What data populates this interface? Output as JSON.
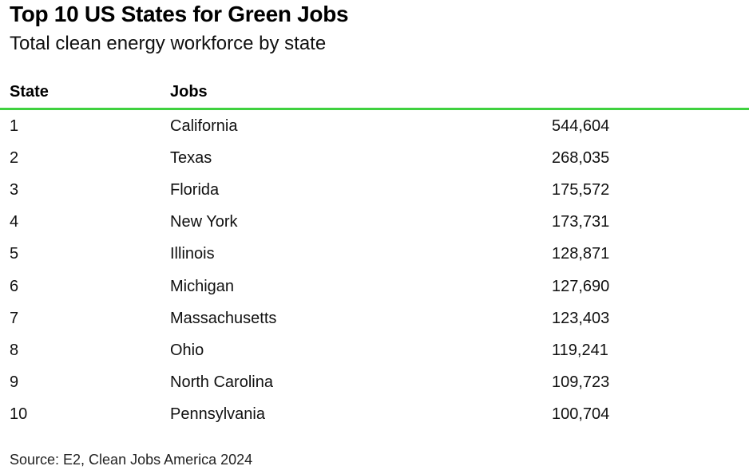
{
  "header": {
    "title": "Top 10 US States for Green Jobs",
    "subtitle": "Total clean energy workforce by state"
  },
  "table": {
    "columns": [
      "State",
      "Jobs"
    ],
    "rows": [
      [
        "1",
        "California",
        "544,604"
      ],
      [
        "2",
        "Texas",
        "268,035"
      ],
      [
        "3",
        "Florida",
        "175,572"
      ],
      [
        "4",
        "New York",
        "173,731"
      ],
      [
        "5",
        "Illinois",
        "128,871"
      ],
      [
        "6",
        "Michigan",
        "127,690"
      ],
      [
        "7",
        "Massachusetts",
        "123,403"
      ],
      [
        "8",
        "Ohio",
        "119,241"
      ],
      [
        "9",
        "North Carolina",
        "109,723"
      ],
      [
        "10",
        "Pennsylvania",
        "100,704"
      ]
    ]
  },
  "source": "Source: E2, Clean Jobs America 2024"
}
